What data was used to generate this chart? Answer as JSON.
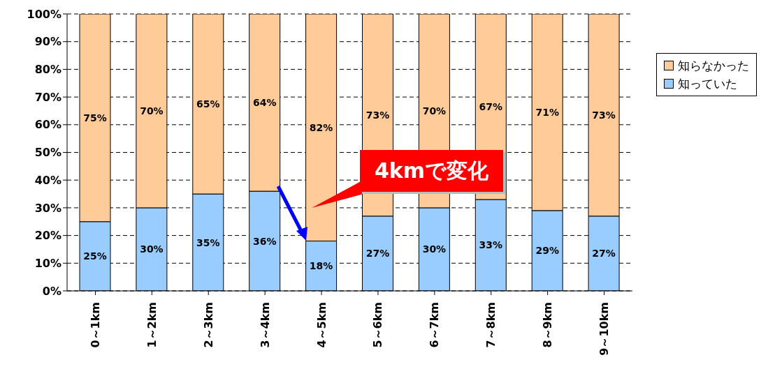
{
  "chart_data": {
    "type": "bar",
    "stacked": true,
    "categories": [
      "0～1km",
      "1～2km",
      "2～3km",
      "3～4km",
      "4～5km",
      "5～6km",
      "6～7km",
      "7～8km",
      "8～9km",
      "9～10km"
    ],
    "series": [
      {
        "name": "知っていた",
        "color": "#99ccff",
        "values": [
          25,
          30,
          35,
          36,
          18,
          27,
          30,
          33,
          29,
          27
        ],
        "value_labels": [
          "25%",
          "30%",
          "35%",
          "36%",
          "18%",
          "27%",
          "30%",
          "33%",
          "29%",
          "27%"
        ]
      },
      {
        "name": "知らなかった",
        "color": "#ffcc99",
        "values": [
          75,
          70,
          65,
          64,
          82,
          73,
          70,
          67,
          71,
          73
        ],
        "value_labels": [
          "75%",
          "70%",
          "65%",
          "64%",
          "82%",
          "73%",
          "70%",
          "67%",
          "71%",
          "73%"
        ]
      }
    ],
    "ylim": [
      0,
      100
    ],
    "yticks": [
      {
        "value": 0,
        "label": "0%"
      },
      {
        "value": 10,
        "label": "10%"
      },
      {
        "value": 20,
        "label": "20%"
      },
      {
        "value": 30,
        "label": "30%"
      },
      {
        "value": 40,
        "label": "40%"
      },
      {
        "value": 50,
        "label": "50%"
      },
      {
        "value": 60,
        "label": "60%"
      },
      {
        "value": 70,
        "label": "70%"
      },
      {
        "value": 80,
        "label": "80%"
      },
      {
        "value": 90,
        "label": "90%"
      },
      {
        "value": 100,
        "label": "100%"
      }
    ],
    "grid": "y",
    "legend": "right",
    "annotations": [
      "4kmで変化"
    ]
  }
}
